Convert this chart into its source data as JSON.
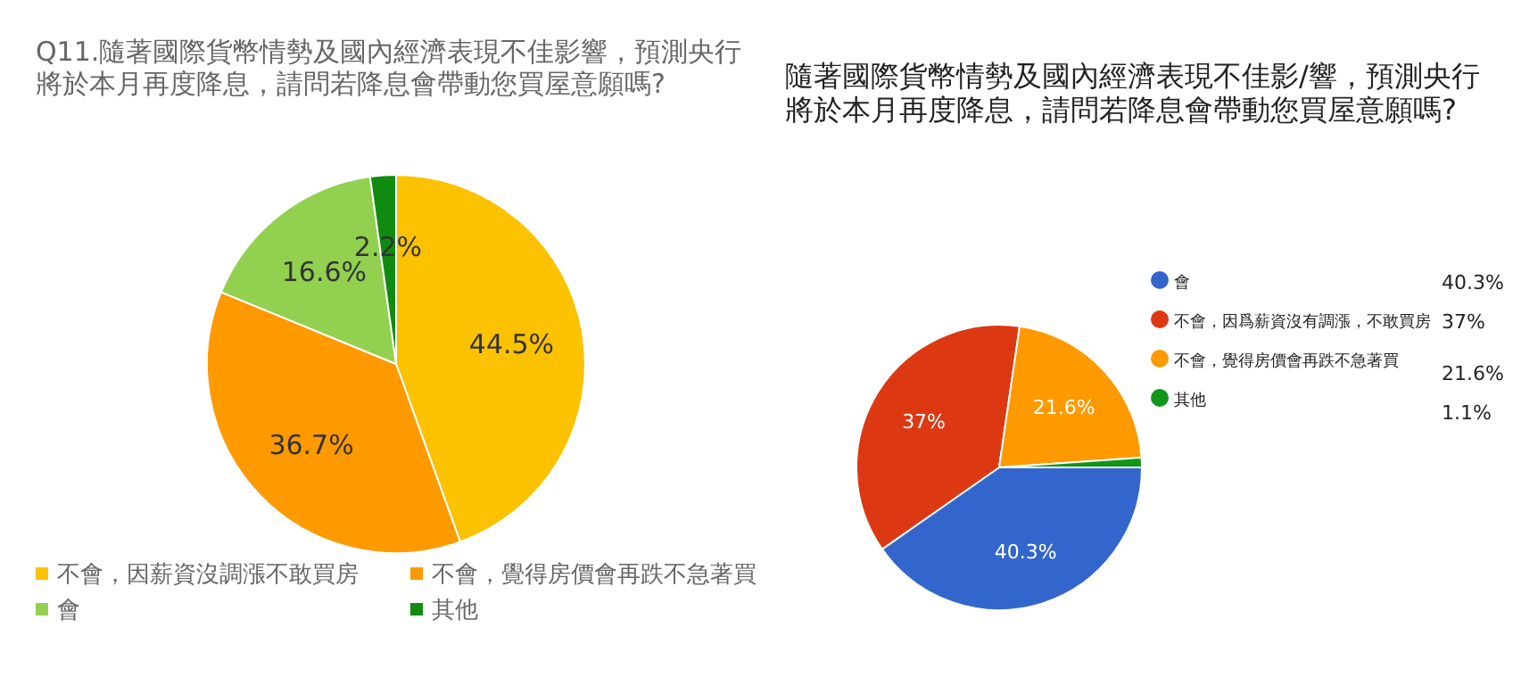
{
  "chart_data": [
    {
      "type": "pie",
      "title": "Q11.隨著國際貨幣情勢及國內經濟表現不佳影響，預測央行將於本月再度降息，請問若降息會帶動您買屋意願嗎?",
      "categories": [
        "不會，因薪資沒調漲不敢買房",
        "不會，覺得房價會再跌不急著買",
        "會",
        "其他"
      ],
      "values": [
        44.5,
        36.7,
        16.6,
        2.2
      ],
      "colors": [
        "#fcc200",
        "#ff9900",
        "#92d050",
        "#108a10"
      ],
      "value_labels": [
        "44.5%",
        "36.7%",
        "16.6%",
        "2.2%"
      ],
      "legend": "bottom"
    },
    {
      "type": "pie",
      "title": "隨著國際貨幣情勢及國內經濟表現不佳影/響，預測央行將於本月再度降息，請問若降息會帶動您買屋意願嗎?",
      "categories": [
        "會",
        "不會，因爲薪資沒有調漲，不敢買房",
        "不會，覺得房價會再跌不急著買",
        "其他"
      ],
      "values": [
        40.3,
        37,
        21.6,
        1.1
      ],
      "colors": [
        "#3366cc",
        "#dc3912",
        "#ff9900",
        "#109618"
      ],
      "value_labels": [
        "40.3%",
        "37%",
        "21.6%",
        "1.1%"
      ],
      "legend": "right"
    }
  ]
}
